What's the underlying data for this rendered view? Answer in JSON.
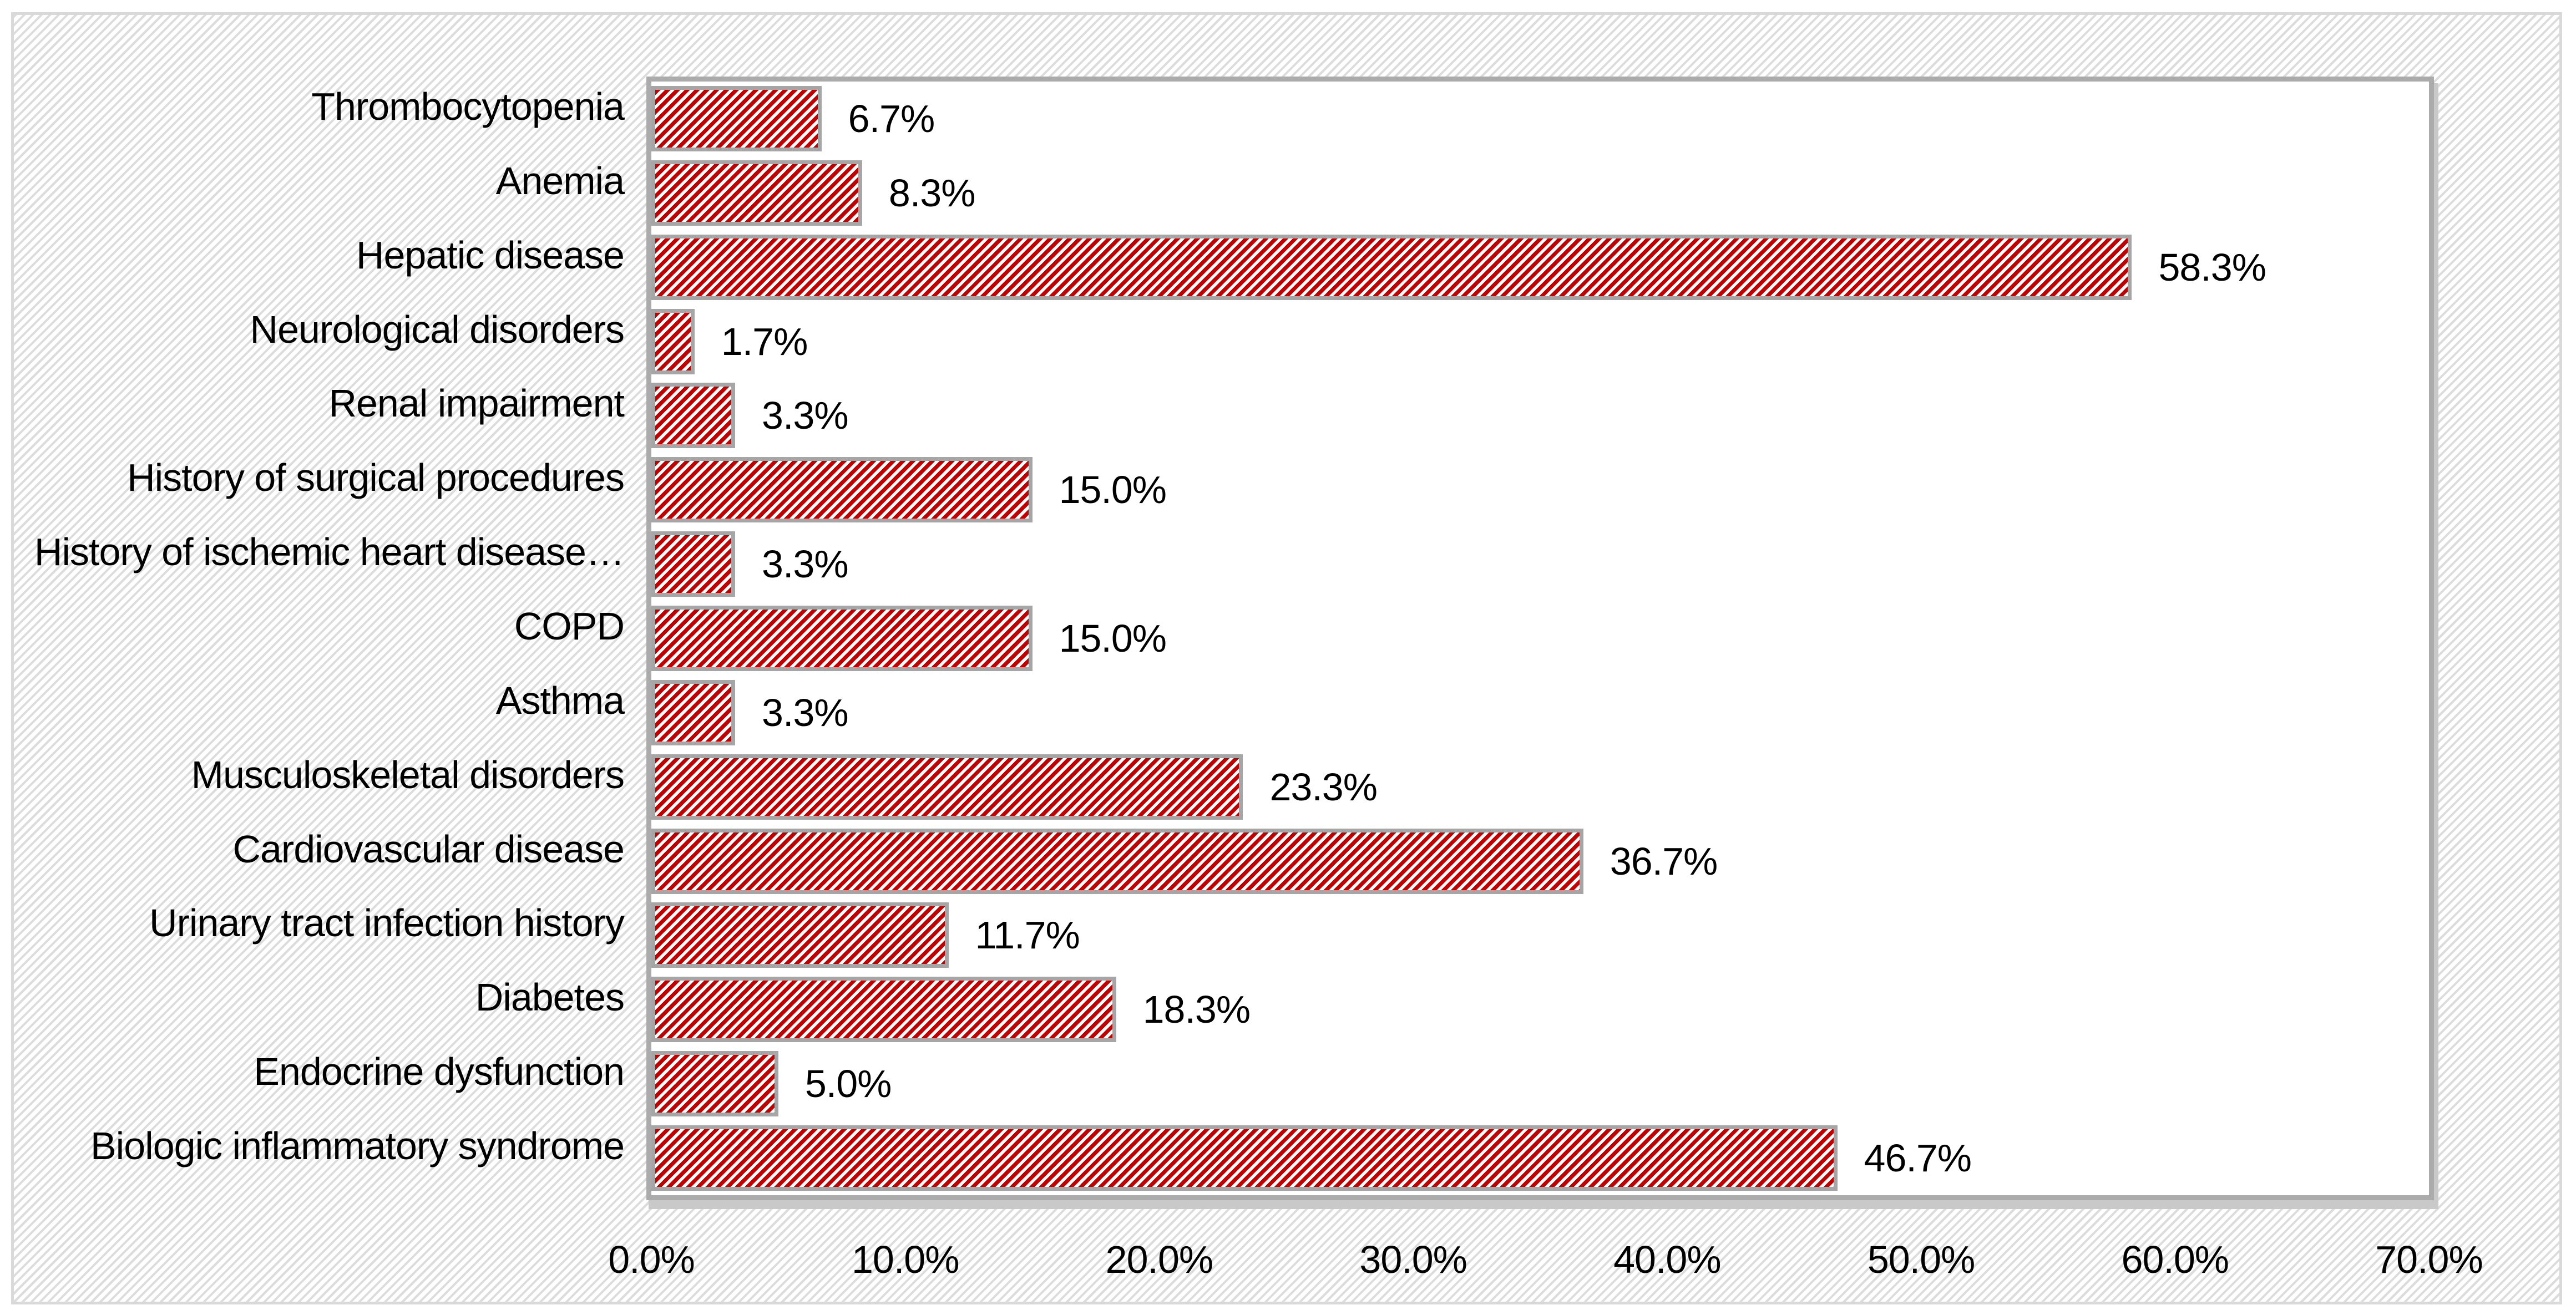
{
  "chart_data": {
    "type": "bar",
    "orientation": "horizontal",
    "title": "",
    "xlabel": "",
    "ylabel": "",
    "categories": [
      "Thrombocytopenia",
      "Anemia",
      "Hepatic disease",
      "Neurological disorders",
      "Renal impairment",
      "History of surgical procedures",
      "History of ischemic heart disease…",
      "COPD",
      "Asthma",
      "Musculoskeletal disorders",
      "Cardiovascular disease",
      "Urinary tract infection history",
      "Diabetes",
      "Endocrine dysfunction",
      "Biologic inflammatory syndrome"
    ],
    "values": [
      6.7,
      8.3,
      58.3,
      1.7,
      3.3,
      15.0,
      3.3,
      15.0,
      3.3,
      23.3,
      36.7,
      11.7,
      18.3,
      5.0,
      46.7
    ],
    "data_labels": [
      "6.7%",
      "8.3%",
      "58.3%",
      "1.7%",
      "3.3%",
      "15.0%",
      "3.3%",
      "15.0%",
      "3.3%",
      "23.3%",
      "36.7%",
      "11.7%",
      "18.3%",
      "5.0%",
      "46.7%"
    ],
    "xlim": [
      0,
      70
    ],
    "x_tick_step": 10,
    "x_tick_labels": [
      "0.0%",
      "10.0%",
      "20.0%",
      "30.0%",
      "40.0%",
      "50.0%",
      "60.0%",
      "70.0%"
    ],
    "grid": "vertical-and-horizontal",
    "legend": "none",
    "bar_fill_pattern": "upward-diagonal-stripes",
    "chart_background_pattern": "light-upward-diagonal-hatch",
    "colors": {
      "bar_stripe": "#C00000",
      "bar_background": "#FFFFFF",
      "bar_border": "#A6A6A6",
      "gridline": "#D9D9D9",
      "plot_border": "#ABABAB",
      "plot_shadow": "#C9C9C9",
      "chart_hatch": "#DCDCDC",
      "chart_border": "#D9D9D9",
      "label_text": "#000000"
    }
  }
}
